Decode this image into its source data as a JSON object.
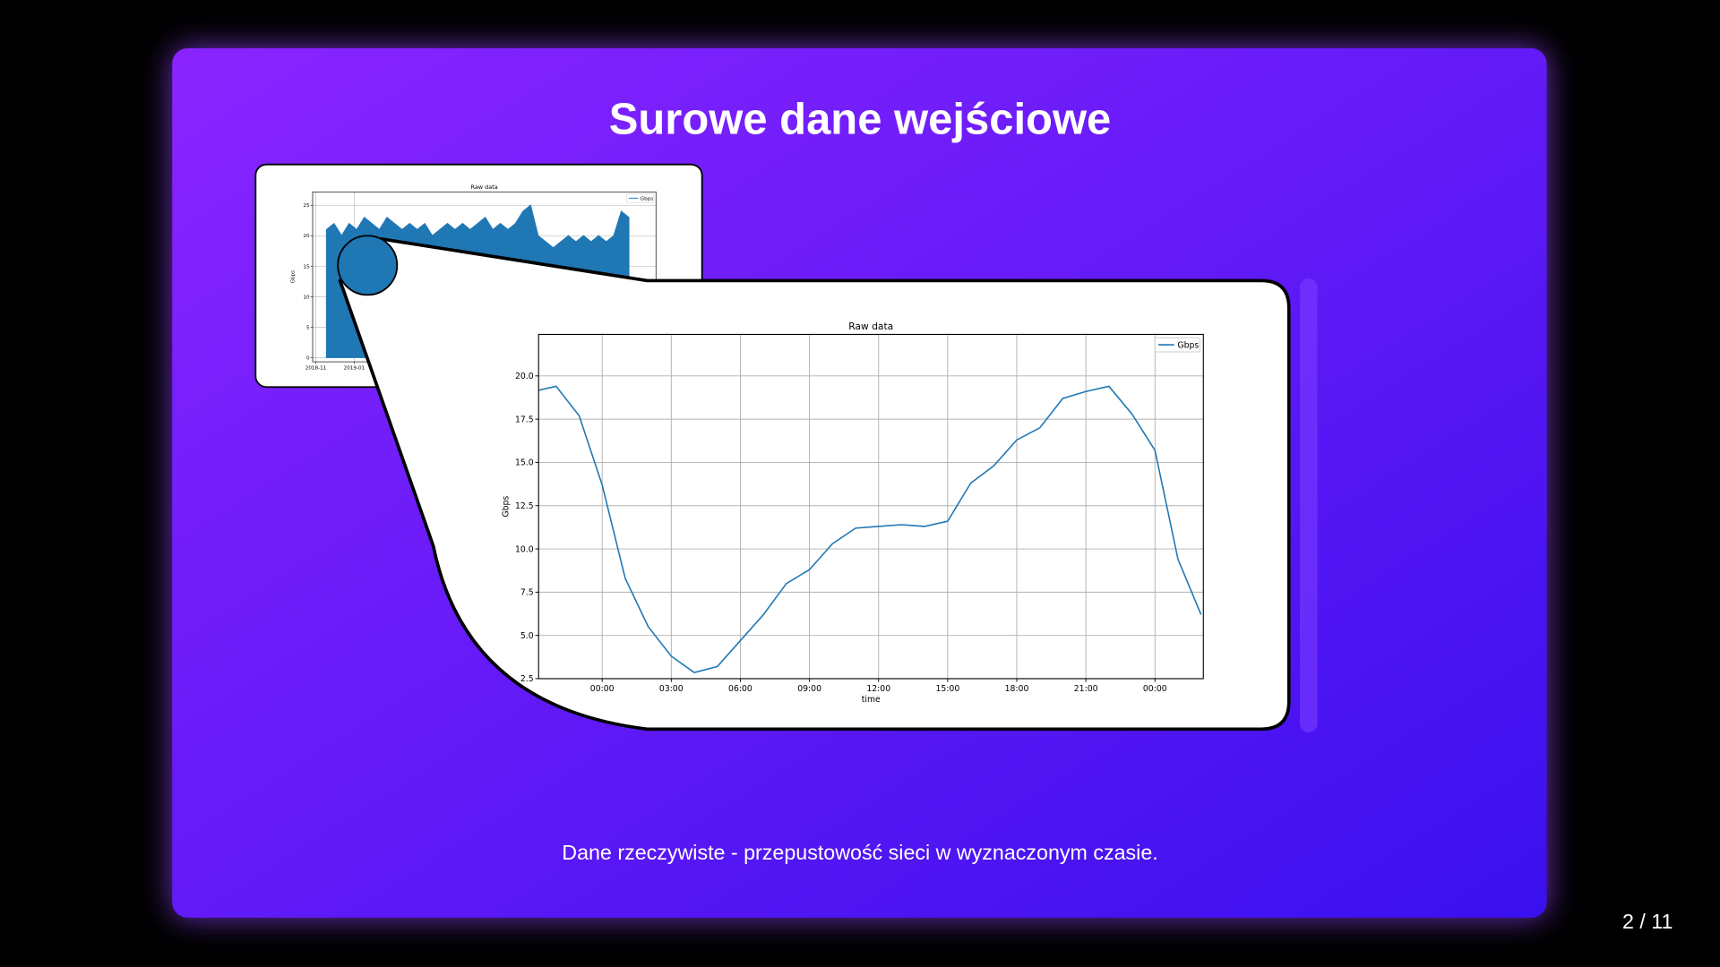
{
  "slide": {
    "title": "Surowe dane wejściowe",
    "caption": "Dane rzeczywiste - przepustowość sieci w wyznaczonym czasie.",
    "page_number": "2 / 11"
  },
  "thumbnail_chart": {
    "type": "area",
    "title": "Raw data",
    "y_label": "Gbps",
    "legend": "Gbps",
    "color": "#1f77b4",
    "x": [
      17,
      29,
      41,
      53,
      65,
      77,
      89,
      101,
      113,
      125,
      137,
      149,
      161,
      173,
      185,
      197,
      209,
      221,
      233,
      245,
      257,
      269,
      281,
      293,
      305,
      317,
      329,
      341,
      353,
      365,
      377,
      389,
      401,
      413,
      425,
      437,
      449,
      461,
      473,
      485,
      497
    ],
    "values": [
      21,
      22,
      20,
      22,
      21,
      23,
      22,
      21,
      23,
      22,
      21,
      22,
      21,
      22,
      20,
      21,
      22,
      21,
      22,
      21,
      22,
      23,
      21,
      22,
      21,
      22,
      24,
      25,
      20,
      19,
      18,
      19,
      20,
      19,
      20,
      19,
      20,
      19,
      20,
      24,
      23
    ],
    "xlim": [
      -5,
      540
    ],
    "xticks": [
      {
        "value": 0,
        "label": "2018-11"
      },
      {
        "value": 61,
        "label": "2019-01"
      }
    ],
    "ylim": [
      -0.7,
      27.2
    ],
    "yticks": [
      0,
      5,
      10,
      15,
      20,
      25
    ],
    "grid": true
  },
  "zoom_chart": {
    "type": "line",
    "title": "Raw data",
    "x_label": "time",
    "y_label": "Gbps",
    "legend": "Gbps",
    "color": "#1f77b4",
    "x": [
      -3,
      -2,
      -1,
      0,
      1,
      2,
      3,
      4,
      5,
      6,
      7,
      8,
      9,
      10,
      11,
      12,
      13,
      14,
      15,
      16,
      17,
      18,
      19,
      20,
      21,
      22,
      23,
      24,
      25,
      26
    ],
    "values": [
      19.1,
      19.4,
      17.7,
      13.7,
      8.3,
      5.5,
      3.8,
      2.85,
      3.2,
      4.7,
      6.2,
      8.0,
      8.8,
      10.3,
      11.2,
      11.3,
      11.4,
      11.3,
      11.6,
      13.8,
      14.8,
      16.3,
      17.0,
      18.7,
      19.1,
      19.4,
      17.8,
      15.7,
      9.4,
      6.2
    ],
    "xlim": [
      -2.76,
      26.1
    ],
    "xticks": [
      {
        "value": 0,
        "label": "00:00"
      },
      {
        "value": 3,
        "label": "03:00"
      },
      {
        "value": 6,
        "label": "06:00"
      },
      {
        "value": 9,
        "label": "09:00"
      },
      {
        "value": 12,
        "label": "12:00"
      },
      {
        "value": 15,
        "label": "15:00"
      },
      {
        "value": 18,
        "label": "18:00"
      },
      {
        "value": 21,
        "label": "21:00"
      },
      {
        "value": 24,
        "label": "00:00"
      }
    ],
    "ylim": [
      2.5,
      22.4
    ],
    "yticks": [
      2.5,
      {
        "value": 5,
        "label": "5.0"
      },
      7.5,
      {
        "value": 10,
        "label": "10.0"
      },
      12.5,
      {
        "value": 15,
        "label": "15.0"
      },
      17.5,
      {
        "value": 20,
        "label": "20.0"
      }
    ],
    "grid": true
  }
}
